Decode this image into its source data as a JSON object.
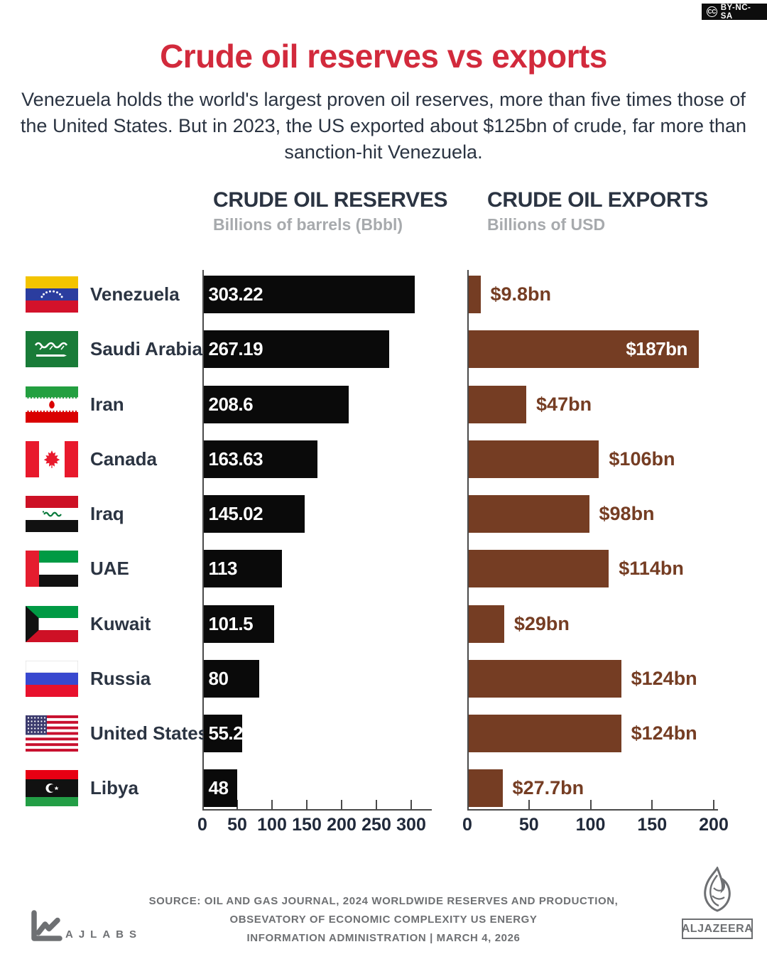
{
  "license_badge": {
    "icon": "cc-icon",
    "label": "BY-NC-SA",
    "cc_text": "CC"
  },
  "header": {
    "title": "Crude oil reserves vs exports",
    "subtitle": "Venezuela holds the world's largest proven oil reserves, more than five times those of the United States. But in 2023, the US exported about $125bn of crude, far more than sanction-hit Venezuela."
  },
  "columns": {
    "reserves": {
      "title": "CRUDE OIL RESERVES",
      "subtitle": "Billions of barrels (Bbbl)"
    },
    "exports": {
      "title": "CRUDE OIL EXPORTS",
      "subtitle": "Billions of USD"
    }
  },
  "countries": [
    {
      "name": "Venezuela",
      "flag": "venezuela"
    },
    {
      "name": "Saudi Arabia",
      "flag": "saudi-arabia"
    },
    {
      "name": "Iran",
      "flag": "iran"
    },
    {
      "name": "Canada",
      "flag": "canada"
    },
    {
      "name": "Iraq",
      "flag": "iraq"
    },
    {
      "name": "UAE",
      "flag": "uae"
    },
    {
      "name": "Kuwait",
      "flag": "kuwait"
    },
    {
      "name": "Russia",
      "flag": "russia"
    },
    {
      "name": "United States",
      "flag": "united-states"
    },
    {
      "name": "Libya",
      "flag": "libya"
    }
  ],
  "chart_data": [
    {
      "type": "bar",
      "orientation": "horizontal",
      "title": "CRUDE OIL RESERVES",
      "subtitle": "Billions of barrels (Bbbl)",
      "categories": [
        "Venezuela",
        "Saudi Arabia",
        "Iran",
        "Canada",
        "Iraq",
        "UAE",
        "Kuwait",
        "Russia",
        "United States",
        "Libya"
      ],
      "values": [
        303.22,
        267.19,
        208.6,
        163.63,
        145.02,
        113,
        101.5,
        80,
        55.2,
        48
      ],
      "labels": [
        "303.22",
        "267.19",
        "208.6",
        "163.63",
        "145.02",
        "113",
        "101.5",
        "80",
        "55.2",
        "48"
      ],
      "xlim": [
        0,
        300
      ],
      "x_ticks": [
        0,
        50,
        100,
        150,
        200,
        250,
        300
      ],
      "bar_color": "#0a0a0a",
      "label_color_inside": "#ffffff",
      "grid": false,
      "legend": "none"
    },
    {
      "type": "bar",
      "orientation": "horizontal",
      "title": "CRUDE OIL EXPORTS",
      "subtitle": "Billions of USD",
      "categories": [
        "Venezuela",
        "Saudi Arabia",
        "Iran",
        "Canada",
        "Iraq",
        "UAE",
        "Kuwait",
        "Russia",
        "United States",
        "Libya"
      ],
      "values": [
        9.8,
        187,
        47,
        106,
        98,
        114,
        29,
        124,
        124,
        27.7
      ],
      "labels": [
        "$9.8bn",
        "$187bn",
        "$47bn",
        "$106bn",
        "$98bn",
        "$114bn",
        "$29bn",
        "$124bn",
        "$124bn",
        "$27.7bn"
      ],
      "xlim": [
        0,
        200
      ],
      "x_ticks": [
        0,
        50,
        100,
        150,
        200
      ],
      "bar_color": "#753d23",
      "label_color_inside": "#ffffff",
      "label_color_outside": "#753d23",
      "grid": false,
      "legend": "none"
    }
  ],
  "footer": {
    "source_lines": [
      "SOURCE:  OIL AND GAS JOURNAL, 2024 WORLDWIDE RESERVES AND PRODUCTION,",
      "OBSEVATORY OF ECONOMIC COMPLEXITY US ENERGY",
      "INFORMATION ADMINISTRATION   |   MARCH 4, 2026"
    ],
    "ajlabs_label": "AJLABS",
    "aljazeera_label": "ALJAZEERA"
  }
}
